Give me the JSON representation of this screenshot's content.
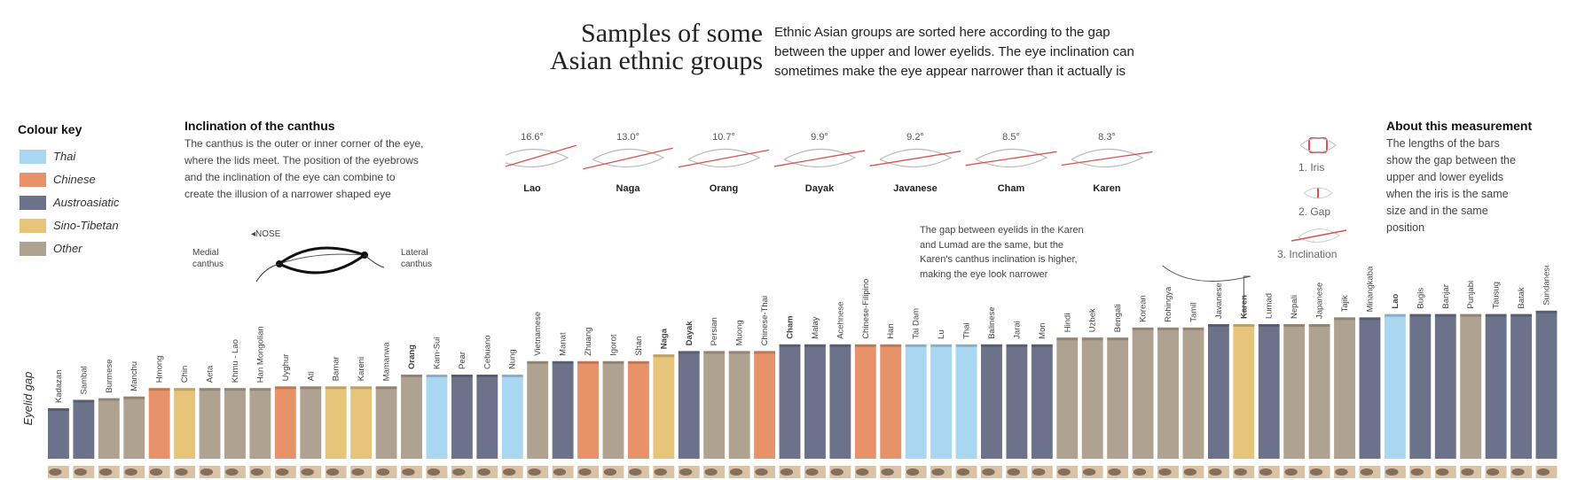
{
  "header": {
    "title_line1": "Samples of some",
    "title_line2": "Asian ethnic groups",
    "intro_line1": "Ethnic Asian groups are sorted here according to the gap",
    "intro_line2": "between the upper and lower eyelids. The eye inclination can",
    "intro_line3": "sometimes make the eye appear narrower than it actually is"
  },
  "colour_key": {
    "title": "Colour key",
    "items": [
      {
        "label": "Thai",
        "color": "#a9d6f0"
      },
      {
        "label": "Chinese",
        "color": "#e8926a"
      },
      {
        "label": "Austroasiatic",
        "color": "#6c7289"
      },
      {
        "label": "Sino-Tibetan",
        "color": "#e6c57a"
      },
      {
        "label": "Other",
        "color": "#b0a290"
      }
    ]
  },
  "canthus": {
    "title": "Inclination of the canthus",
    "text_line1": "The canthus is the outer or inner corner of the eye,",
    "text_line2": "where the lids meet. The position of the eyebrows",
    "text_line3": "and the inclination of the eye can combine to",
    "text_line4": "create the illusion of a narrower shaped eye",
    "nose_label": "◂NOSE",
    "medial_line1": "Medial",
    "medial_line2": "canthus",
    "lateral_line1": "Lateral",
    "lateral_line2": "canthus"
  },
  "inclinations": [
    {
      "group": "Lao",
      "angle": "16.6°",
      "deg": 16.6
    },
    {
      "group": "Naga",
      "angle": "13.0°",
      "deg": 13.0
    },
    {
      "group": "Orang",
      "angle": "10.7°",
      "deg": 10.7
    },
    {
      "group": "Dayak",
      "angle": "9.9°",
      "deg": 9.9
    },
    {
      "group": "Javanese",
      "angle": "9.2°",
      "deg": 9.2
    },
    {
      "group": "Cham",
      "angle": "8.5°",
      "deg": 8.5
    },
    {
      "group": "Karen",
      "angle": "8.3°",
      "deg": 8.3
    }
  ],
  "annotation": {
    "line1": "The gap between eyelids in the Karen",
    "line2": "and Lumad are the same, but the",
    "line3": "Karen's canthus inclination is higher,",
    "line4": "making the eye look narrower"
  },
  "measure_legend": {
    "iris": "1. Iris",
    "gap": "2. Gap",
    "inclination": "3. Inclination"
  },
  "about": {
    "title": "About this measurement",
    "line1": "The lengths of the bars",
    "line2": "show the gap between the",
    "line3": "upper and lower eyelids",
    "line4": "when the iris is the same",
    "line5": "size and in the same",
    "line6": "position"
  },
  "chart_data": {
    "type": "bar",
    "title": "Samples of some Asian ethnic groups",
    "ylabel": "Eyelid gap",
    "xlabel": "",
    "ylim": [
      0,
      100
    ],
    "grid": false,
    "legend": "left",
    "categories": [
      "Kadazan",
      "Sambal",
      "Burmese",
      "Manchu",
      "Hmong",
      "Chin",
      "Aeta",
      "Khmu - Lao",
      "Han Mongolian",
      "Uyghur",
      "Ati",
      "Bamar",
      "Kareni",
      "Mamanwa",
      "Orang",
      "Kam-Sui",
      "Pear",
      "Cebuano",
      "Nung",
      "Vietnamese",
      "Manat",
      "Zhuang",
      "Igorot",
      "Shan",
      "Naga",
      "Dayak",
      "Persian",
      "Muong",
      "Chinese-Thai",
      "Cham",
      "Malay",
      "Acehnese",
      "Chinese-Filipino",
      "Han",
      "Tai Dam",
      "Lu",
      "Thai",
      "Balinese",
      "Jarai",
      "Mon",
      "Hindi",
      "Uzbek",
      "Bengali",
      "Korean",
      "Rohingya",
      "Tamil",
      "Javanese",
      "Karen",
      "Lumad",
      "Nepali",
      "Japanese",
      "Tajik",
      "Minangkabau",
      "Lao",
      "Bugis",
      "Banjar",
      "Punjabi",
      "Tausug",
      "Batak",
      "Sundanese"
    ],
    "values": [
      30,
      35,
      36,
      37,
      42,
      42,
      42,
      42,
      42,
      43,
      43,
      43,
      43,
      43,
      50,
      50,
      50,
      50,
      50,
      58,
      58,
      58,
      58,
      58,
      62,
      64,
      64,
      64,
      64,
      68,
      68,
      68,
      68,
      68,
      68,
      68,
      68,
      68,
      68,
      68,
      72,
      72,
      72,
      78,
      78,
      78,
      80,
      80,
      80,
      80,
      80,
      84,
      84,
      86,
      86,
      86,
      86,
      86,
      86,
      88
    ],
    "groups": [
      "Austroasiatic",
      "Austroasiatic",
      "Other",
      "Other",
      "Chinese",
      "Sino-Tibetan",
      "Other",
      "Other",
      "Other",
      "Chinese",
      "Other",
      "Sino-Tibetan",
      "Sino-Tibetan",
      "Other",
      "Other",
      "Thai",
      "Austroasiatic",
      "Austroasiatic",
      "Thai",
      "Other",
      "Austroasiatic",
      "Chinese",
      "Other",
      "Chinese",
      "Sino-Tibetan",
      "Austroasiatic",
      "Other",
      "Other",
      "Chinese",
      "Austroasiatic",
      "Austroasiatic",
      "Austroasiatic",
      "Chinese",
      "Chinese",
      "Thai",
      "Thai",
      "Thai",
      "Austroasiatic",
      "Austroasiatic",
      "Austroasiatic",
      "Other",
      "Other",
      "Other",
      "Other",
      "Other",
      "Other",
      "Austroasiatic",
      "Sino-Tibetan",
      "Austroasiatic",
      "Other",
      "Other",
      "Other",
      "Austroasiatic",
      "Thai",
      "Austroasiatic",
      "Austroasiatic",
      "Other",
      "Austroasiatic",
      "Austroasiatic",
      "Austroasiatic"
    ],
    "bold": [
      "Orang",
      "Naga",
      "Dayak",
      "Cham",
      "Karen",
      "Lao"
    ]
  }
}
